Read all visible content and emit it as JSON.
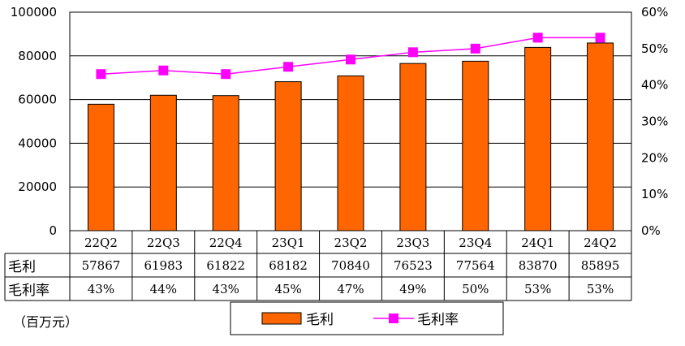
{
  "chart_data": {
    "type": "bar",
    "categories": [
      "22Q2",
      "22Q3",
      "22Q4",
      "23Q1",
      "23Q2",
      "23Q3",
      "23Q4",
      "24Q1",
      "24Q2"
    ],
    "series": [
      {
        "name": "毛利",
        "type": "bar",
        "axis": "left",
        "values": [
          57867,
          61983,
          61822,
          68182,
          70840,
          76523,
          77564,
          83870,
          85895
        ],
        "color": "#ff6600"
      },
      {
        "name": "毛利率",
        "type": "line",
        "axis": "right",
        "values": [
          43,
          44,
          43,
          45,
          47,
          49,
          50,
          53,
          53
        ],
        "color": "#ff00ff"
      }
    ],
    "left_axis": {
      "min": 0,
      "max": 100000,
      "step": 20000,
      "ticks": [
        "0",
        "20000",
        "40000",
        "60000",
        "80000",
        "100000"
      ]
    },
    "right_axis": {
      "min": 0,
      "max": 60,
      "step": 10,
      "ticks": [
        "0%",
        "10%",
        "20%",
        "30%",
        "40%",
        "50%",
        "60%"
      ]
    },
    "table": {
      "row_labels": [
        "毛利",
        "毛利率"
      ],
      "rows": [
        [
          "57867",
          "61983",
          "61822",
          "68182",
          "70840",
          "76523",
          "77564",
          "83870",
          "85895"
        ],
        [
          "43%",
          "44%",
          "43%",
          "45%",
          "47%",
          "49%",
          "50%",
          "53%",
          "53%"
        ]
      ]
    },
    "legend": {
      "placement": "bottom",
      "items": [
        "毛利",
        "毛利率"
      ]
    },
    "unit_note": "（百万元）",
    "grid": true
  }
}
